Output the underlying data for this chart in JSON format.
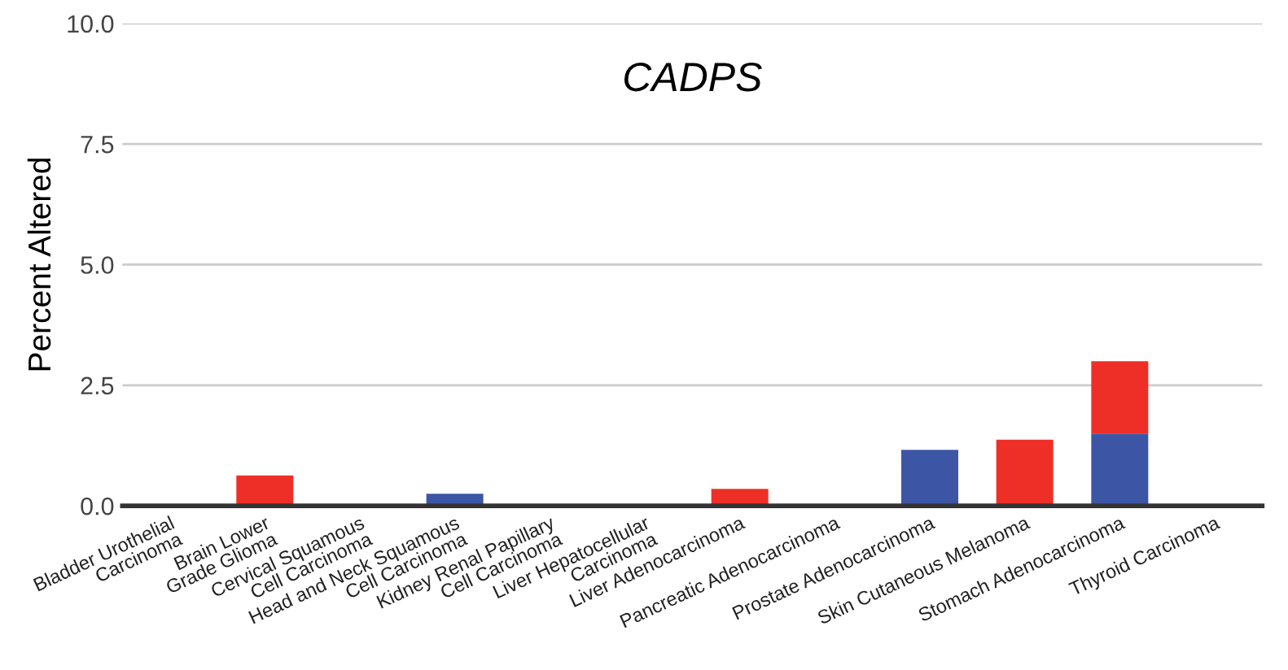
{
  "chart_data": {
    "type": "bar",
    "title": "CADPS",
    "ylabel": "Percent Altered",
    "categories": [
      "Bladder Urothelial\nCarcinoma",
      "Brain Lower\nGrade Glioma",
      "Cervical Squamous\nCell Carcinoma",
      "Head and Neck Squamous\nCell Carcinoma",
      "Kidney Renal Papillary\nCell Carcinoma",
      "Liver Hepatocellular\nCarcinoma",
      "Liver Adenocarcinoma",
      "Pancreatic Adenocarcinoma",
      "Prostate Adenocarcinoma",
      "Skin Cutaneous Melanoma",
      "Stomach Adenocarcinoma",
      "Thyroid Carcinoma"
    ],
    "stacked": true,
    "series": [
      {
        "color": "#3c56a5",
        "values": [
          0,
          0,
          0,
          0.25,
          0,
          0,
          0,
          0,
          1.16,
          0,
          1.5,
          0
        ]
      },
      {
        "color": "#ee2f27",
        "values": [
          0,
          0.63,
          0,
          0,
          0,
          0,
          0.35,
          0,
          0,
          1.37,
          1.5,
          0
        ]
      }
    ],
    "ylim": [
      0,
      10
    ],
    "yticks": [
      {
        "value": 0,
        "label": "0.0"
      },
      {
        "value": 2.5,
        "label": "2.5"
      },
      {
        "value": 5,
        "label": "5.0"
      },
      {
        "value": 7.5,
        "label": "7.5"
      },
      {
        "value": 10,
        "label": "10.0"
      }
    ],
    "grid": "y"
  }
}
